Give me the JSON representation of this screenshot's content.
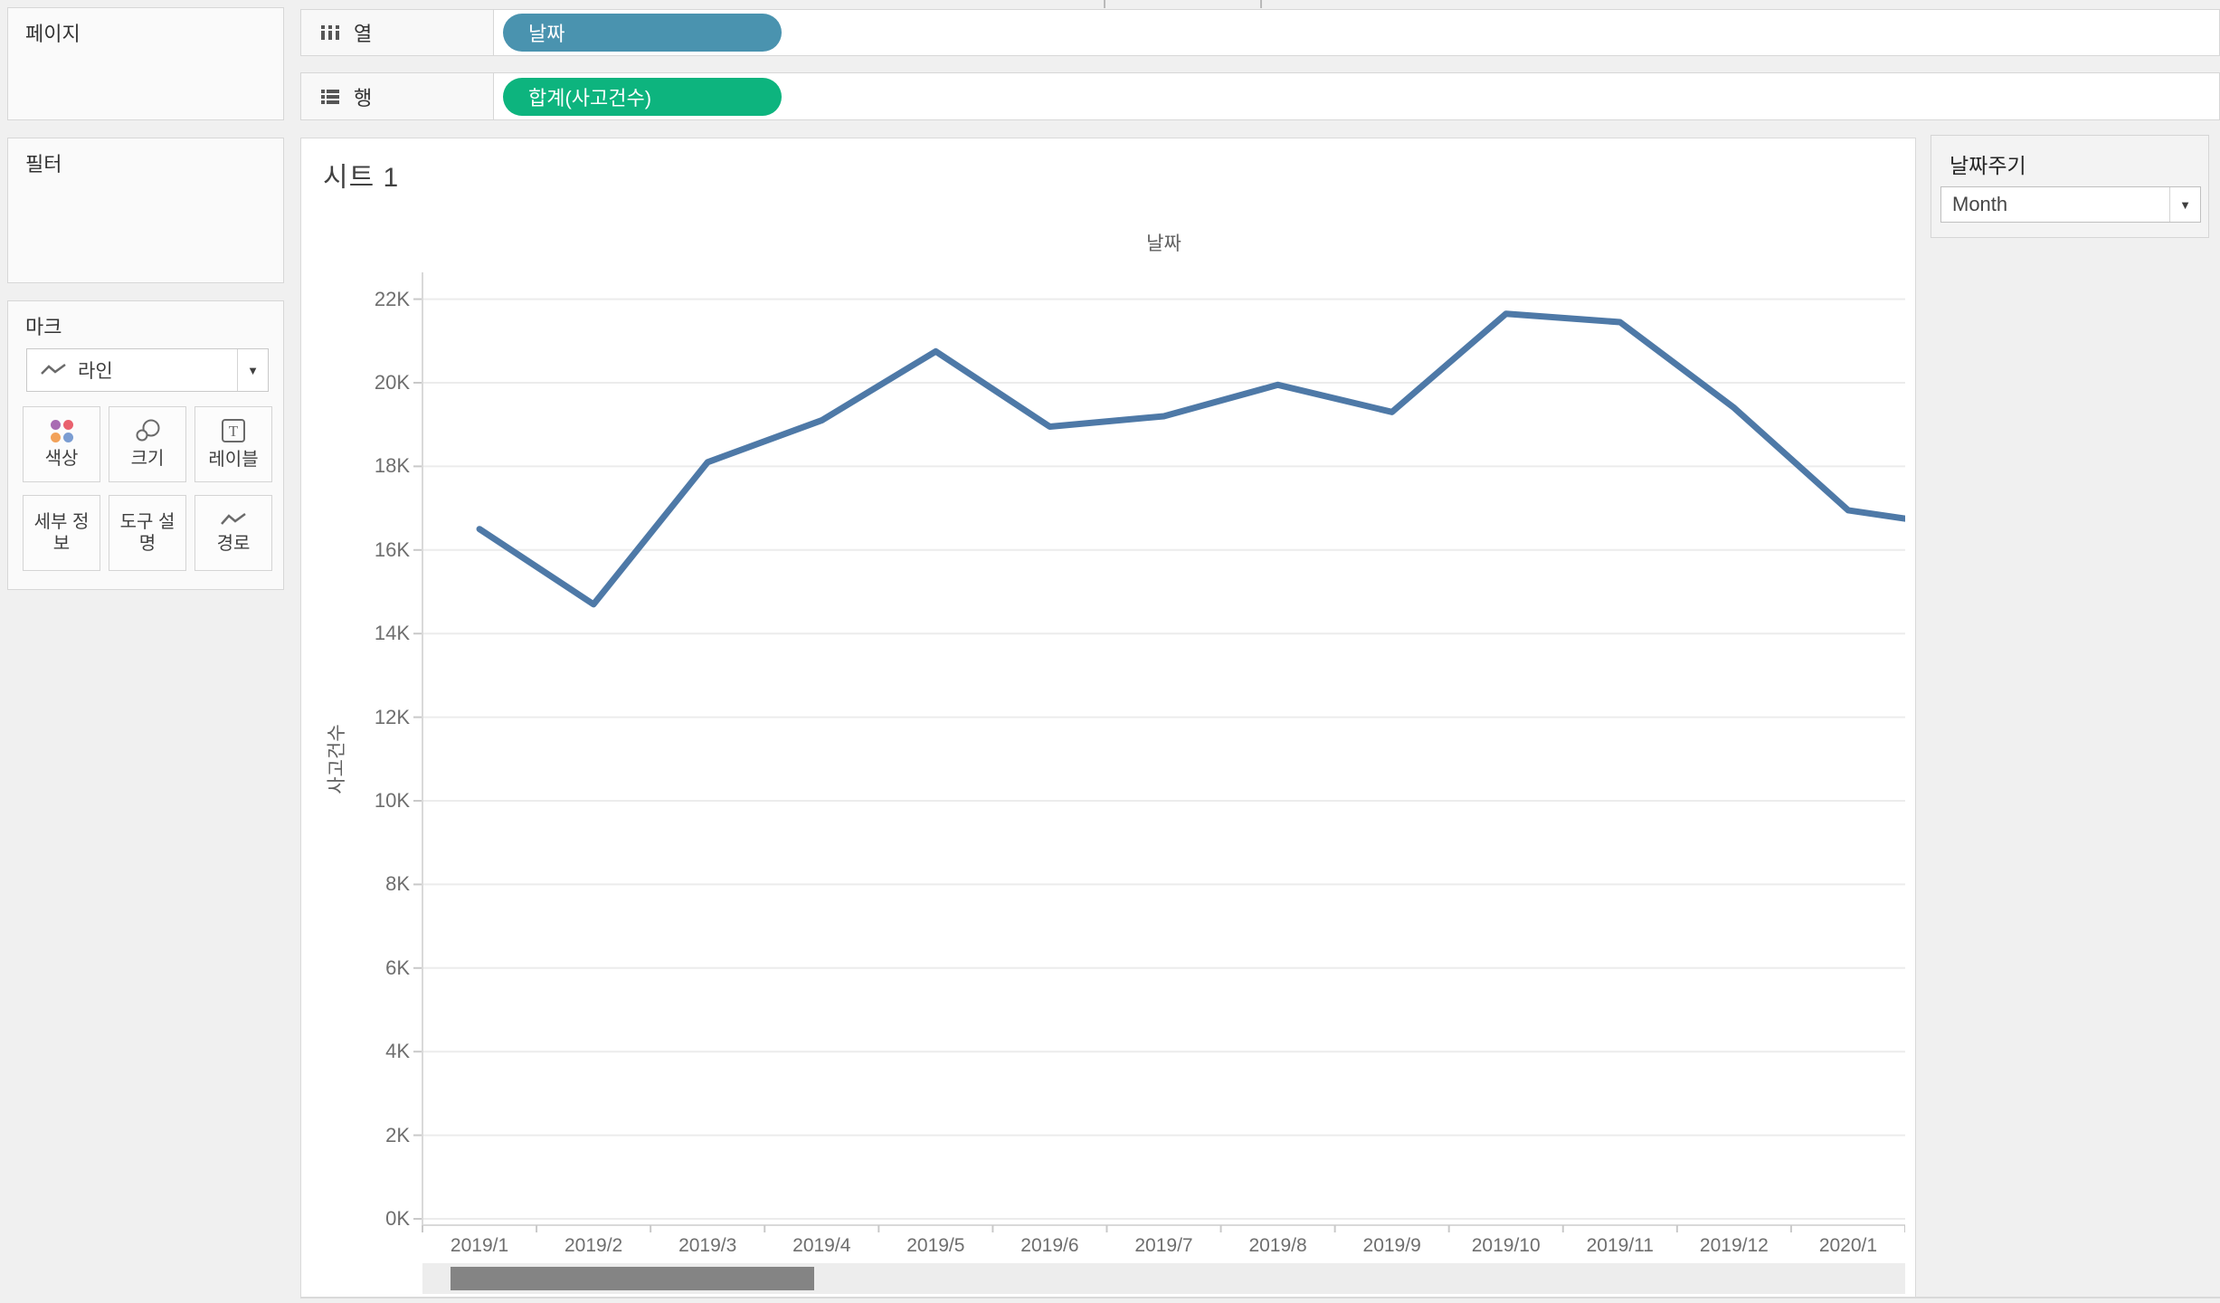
{
  "shelves": {
    "columns_label": "열",
    "rows_label": "행",
    "columns_pill": {
      "label": "날짜",
      "color": "#4a93af"
    },
    "rows_pill": {
      "label": "합계(사고건수)",
      "color": "#0db47e"
    }
  },
  "panels": {
    "pages": {
      "title": "페이지"
    },
    "filters": {
      "title": "필터"
    },
    "marks": {
      "title": "마크",
      "mark_type": "라인",
      "buttons": [
        {
          "label": "색상",
          "icon": "color-dots-icon"
        },
        {
          "label": "크기",
          "icon": "size-circles-icon"
        },
        {
          "label": "레이블",
          "icon": "label-T-icon"
        },
        {
          "label": "세부 정보",
          "icon": null
        },
        {
          "label": "도구 설명",
          "icon": null
        },
        {
          "label": "경로",
          "icon": "path-zigzag-icon"
        }
      ],
      "color_dot_colors": [
        "#a96cb3",
        "#e9616e",
        "#f2a25a",
        "#7b9dd2"
      ]
    }
  },
  "worksheet": {
    "title": "시트 1"
  },
  "parameter_card": {
    "title": "날짜주기",
    "value": "Month"
  },
  "glyphs": {
    "dropdown_arrow": "▼"
  },
  "chart_data": {
    "type": "line",
    "title": "날짜",
    "xlabel": "날짜",
    "ylabel": "사고건수",
    "categories": [
      "2019/1",
      "2019/2",
      "2019/3",
      "2019/4",
      "2019/5",
      "2019/6",
      "2019/7",
      "2019/8",
      "2019/9",
      "2019/10",
      "2019/11",
      "2019/12",
      "2020/1"
    ],
    "values": [
      16500,
      14700,
      18100,
      19100,
      20750,
      18950,
      19200,
      19950,
      19300,
      21650,
      21450,
      19400,
      16950
    ],
    "clipped_tail_value": 16750,
    "ylim": [
      0,
      22000
    ],
    "ytick_step": 2000,
    "ytick_labels": [
      "0K",
      "2K",
      "4K",
      "6K",
      "8K",
      "10K",
      "12K",
      "14K",
      "16K",
      "18K",
      "20K",
      "22K"
    ],
    "line_color": "#4e79a7",
    "grid": true,
    "legend": "none"
  }
}
